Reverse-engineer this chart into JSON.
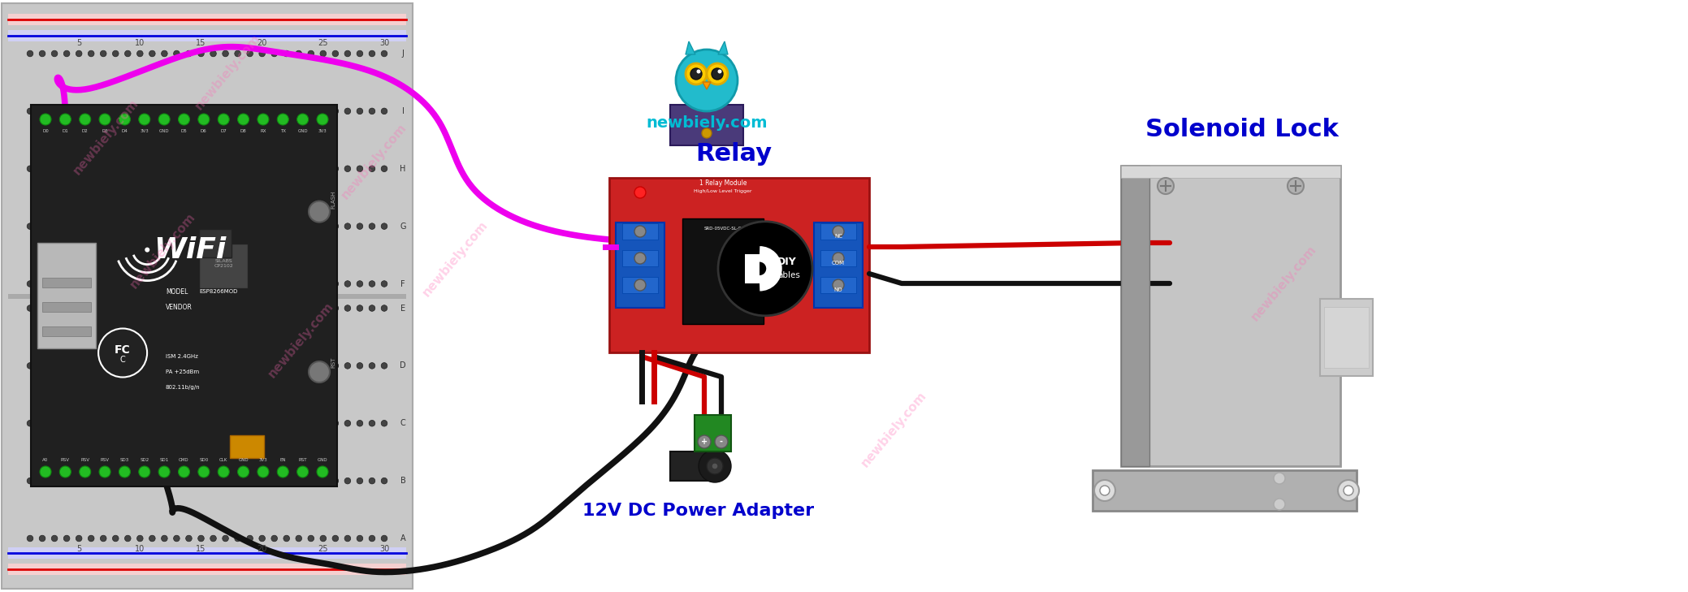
{
  "background_color": "#ffffff",
  "watermark": "newbiely.com",
  "watermark_color": "#ff69b4",
  "watermark_alpha": 0.3,
  "labels": {
    "relay": "Relay",
    "solenoid_lock": "Solenoid Lock",
    "power_adapter": "12V DC Power Adapter",
    "newbiely": "newbiely.com"
  },
  "label_color": "#0000cc",
  "newbiely_color": "#00bcd4",
  "breadboard_bg": "#c8c8c8",
  "breadboard_dark": "#b0b0b0",
  "rail_red": "#dd0000",
  "rail_blue": "#0000dd",
  "wire_pink": "#ee00ee",
  "wire_black": "#111111",
  "wire_red": "#cc0000",
  "relay_red": "#cc2222",
  "relay_blue": "#1555bb",
  "nodemcu_dark": "#1a1a1a",
  "nodemcu_green": "#22cc22",
  "hole_dark": "#444444",
  "hole_light": "#999999",
  "solenoid_metal": "#c0c0c0",
  "solenoid_dark": "#909090"
}
